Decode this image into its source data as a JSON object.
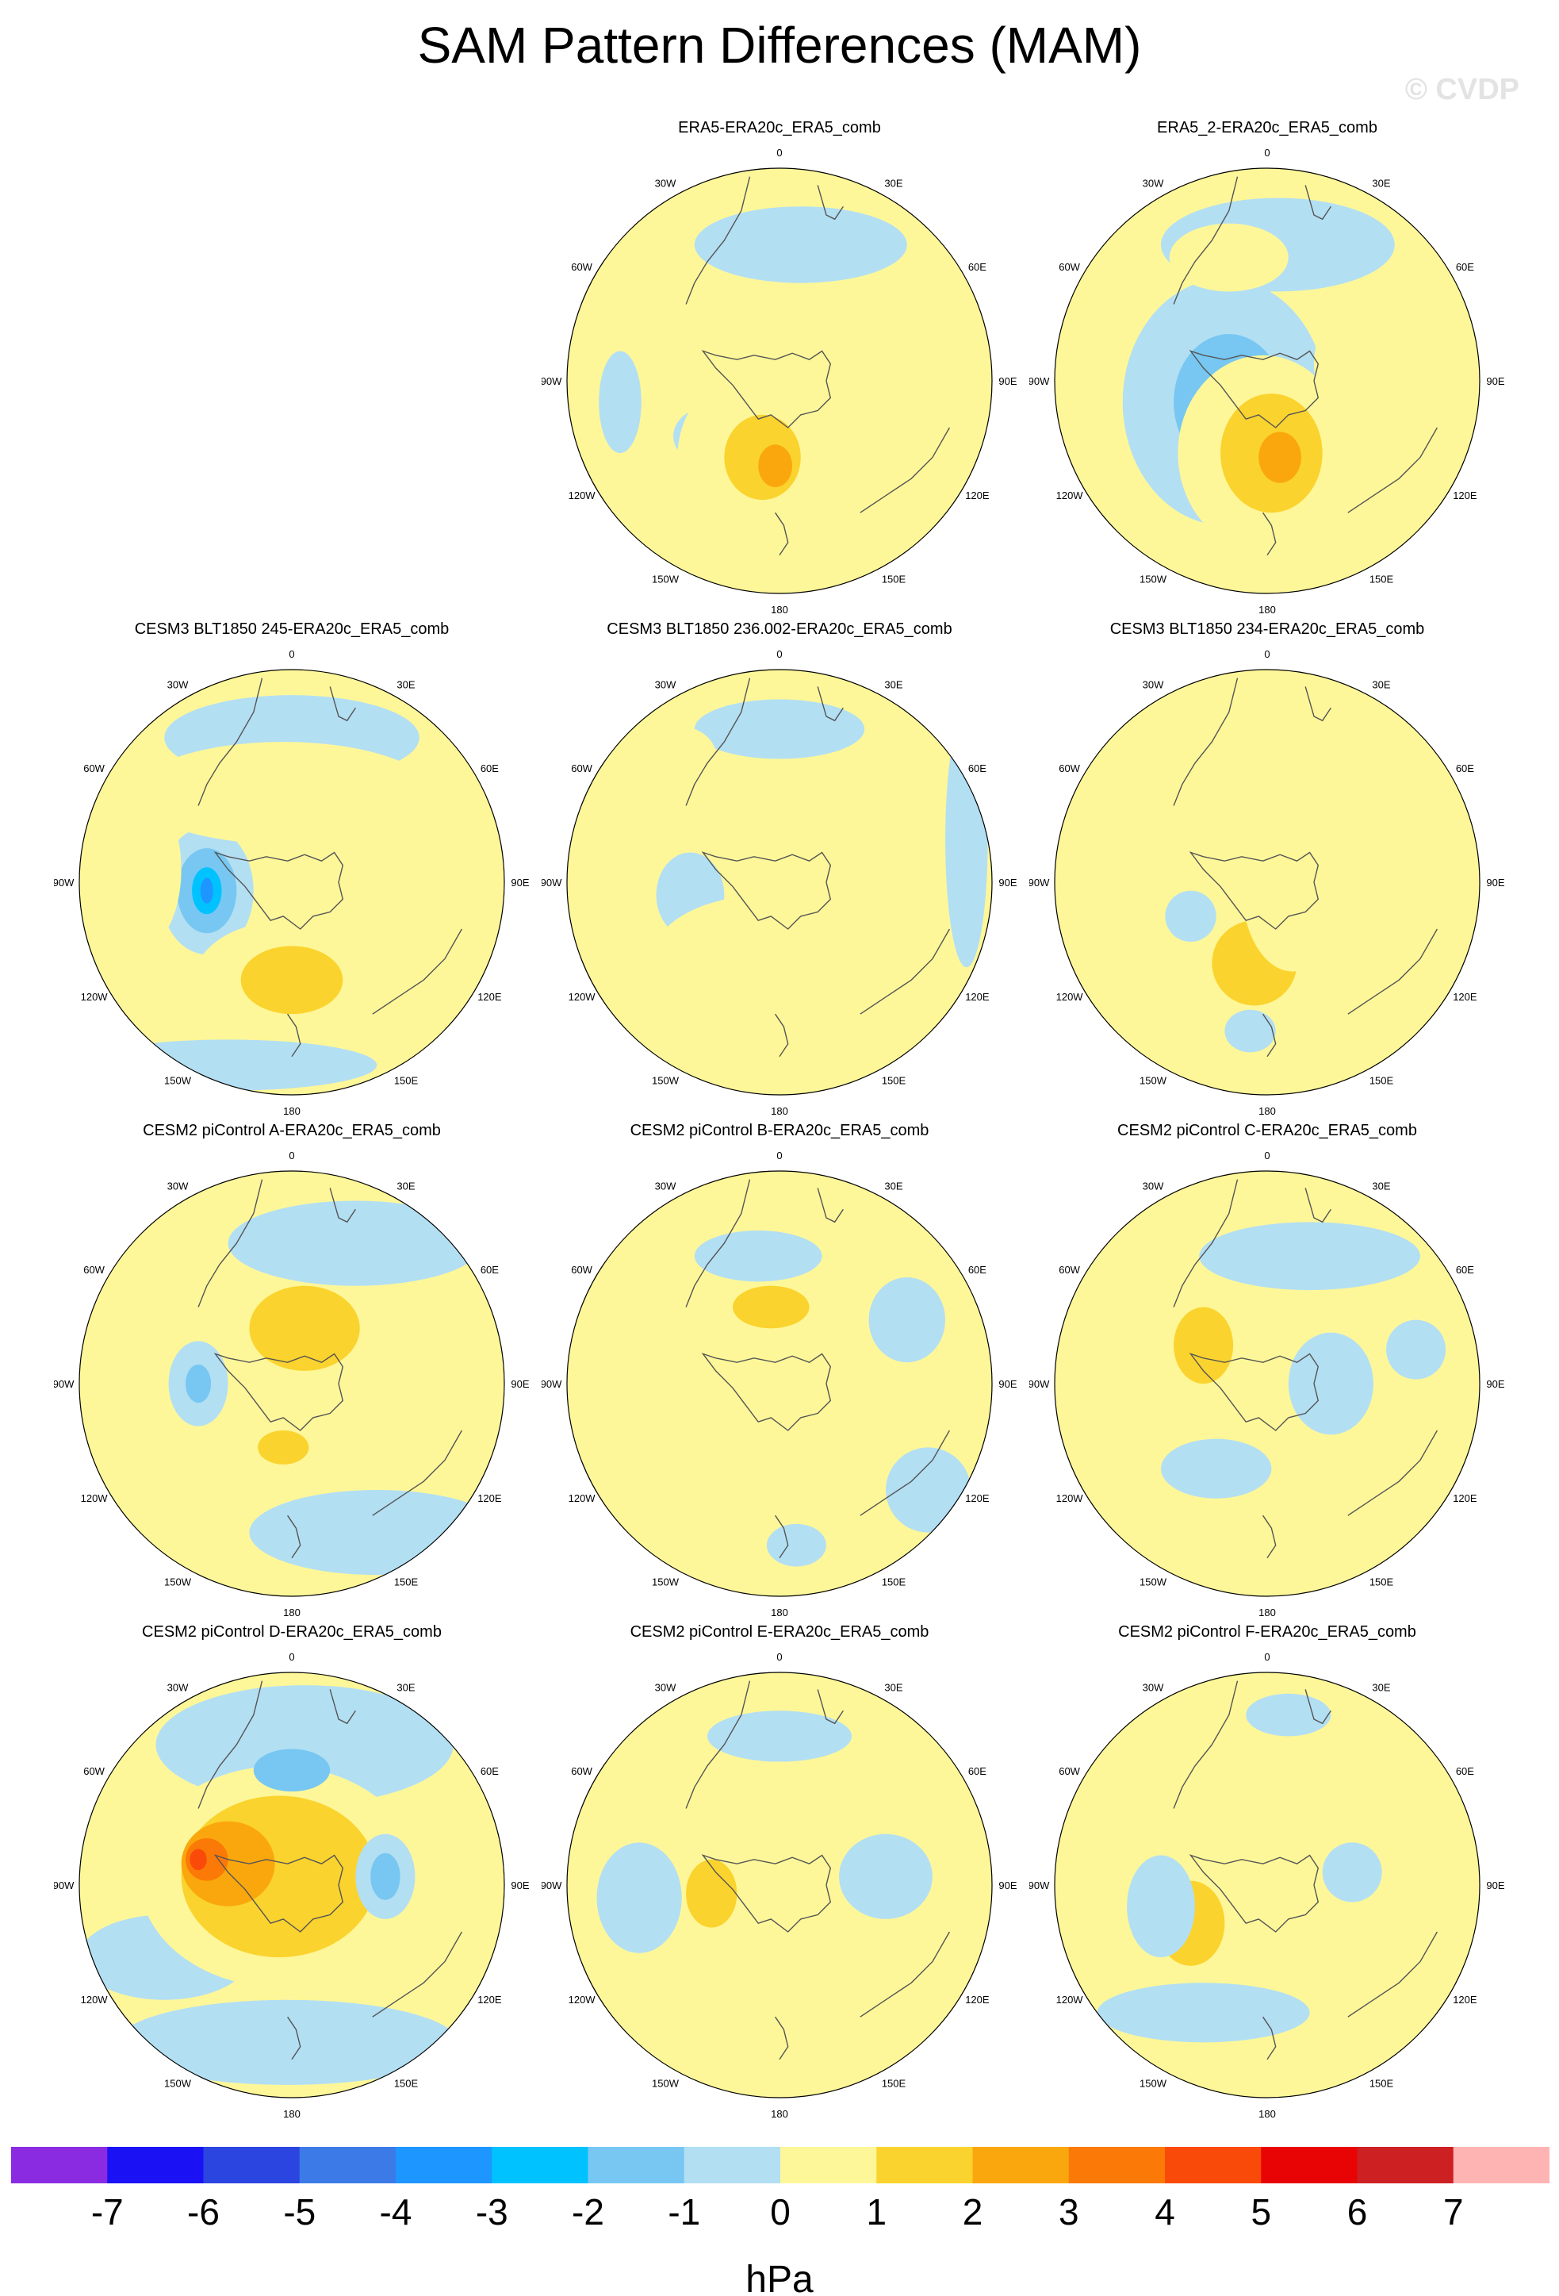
{
  "figure": {
    "title": "SAM Pattern Differences (MAM)",
    "watermark": "© CVDP",
    "units": "hPa"
  },
  "lon_labels": [
    "0",
    "30E",
    "60E",
    "90E",
    "120E",
    "150E",
    "180",
    "150W",
    "120W",
    "90W",
    "60W",
    "30W"
  ],
  "panels": [
    {
      "title": "ERA5-ERA20c_ERA5_comb"
    },
    {
      "title": "ERA5_2-ERA20c_ERA5_comb"
    },
    {
      "title": "CESM3 BLT1850 245-ERA20c_ERA5_comb"
    },
    {
      "title": "CESM3 BLT1850 236.002-ERA20c_ERA5_comb"
    },
    {
      "title": "CESM3 BLT1850 234-ERA20c_ERA5_comb"
    },
    {
      "title": "CESM2 piControl A-ERA20c_ERA5_comb"
    },
    {
      "title": "CESM2 piControl B-ERA20c_ERA5_comb"
    },
    {
      "title": "CESM2 piControl C-ERA20c_ERA5_comb"
    },
    {
      "title": "CESM2 piControl D-ERA20c_ERA5_comb"
    },
    {
      "title": "CESM2 piControl E-ERA20c_ERA5_comb"
    },
    {
      "title": "CESM2 piControl F-ERA20c_ERA5_comb"
    }
  ],
  "chart_data": {
    "type": "heatmap",
    "title": "SAM Pattern Differences (MAM)",
    "projection": "south polar stereographic",
    "colorbar": {
      "units": "hPa",
      "levels": [
        -7,
        -6,
        -5,
        -4,
        -3,
        -2,
        -1,
        0,
        1,
        2,
        3,
        4,
        5,
        6,
        7
      ],
      "tick_labels": [
        "-7",
        "-6",
        "-5",
        "-4",
        "-3",
        "-2",
        "-1",
        "0",
        "1",
        "2",
        "3",
        "4",
        "5",
        "6",
        "7"
      ],
      "colors": [
        "#8a2be2",
        "#1a12f5",
        "#2b45e0",
        "#3c7ae8",
        "#1e96ff",
        "#00c2ff",
        "#77c7f2",
        "#b3dff3",
        "#fef799",
        "#fbd32e",
        "#faa70d",
        "#fb7a07",
        "#fa4a0a",
        "#e80404",
        "#cd2022",
        "#ffb4b4"
      ]
    },
    "panels": [
      {
        "name": "ERA5-ERA20c_ERA5_comb",
        "blobs": [
          [
            -32,
            -26,
            18,
            14,
            -1
          ],
          [
            -32,
            -26,
            10,
            7,
            -2
          ],
          [
            -10,
            -36,
            38,
            42,
            1
          ],
          [
            -8,
            -36,
            18,
            20,
            2
          ],
          [
            -2,
            -40,
            8,
            10,
            3
          ],
          [
            34,
            -4,
            18,
            24,
            1
          ],
          [
            10,
            64,
            50,
            18,
            -1
          ],
          [
            -75,
            -10,
            10,
            24,
            -1
          ]
        ]
      },
      {
        "name": "ERA5_2-ERA20c_ERA5_comb",
        "blobs": [
          [
            -20,
            -10,
            48,
            58,
            -1
          ],
          [
            -18,
            -10,
            26,
            32,
            -2
          ],
          [
            -2,
            -34,
            40,
            46,
            1
          ],
          [
            2,
            -34,
            24,
            28,
            2
          ],
          [
            6,
            -36,
            10,
            12,
            3
          ],
          [
            36,
            8,
            14,
            22,
            1
          ],
          [
            5,
            64,
            55,
            22,
            -1
          ],
          [
            -18,
            58,
            28,
            16,
            1
          ]
        ]
      },
      {
        "name": "CESM3 BLT1850 245-ERA20c_ERA5_comb",
        "blobs": [
          [
            -40,
            -4,
            22,
            30,
            -1
          ],
          [
            -40,
            -4,
            14,
            20,
            -2
          ],
          [
            -40,
            -4,
            7,
            11,
            -3
          ],
          [
            -40,
            -4,
            3,
            6,
            -4
          ],
          [
            -2,
            -46,
            44,
            28,
            1
          ],
          [
            0,
            -46,
            24,
            16,
            2
          ],
          [
            -72,
            6,
            20,
            38,
            1
          ],
          [
            0,
            68,
            60,
            20,
            -1
          ],
          [
            -4,
            42,
            70,
            24,
            1
          ],
          [
            36,
            34,
            22,
            20,
            1
          ],
          [
            -30,
            -86,
            70,
            12,
            -1
          ]
        ]
      },
      {
        "name": "CESM3 BLT1850 236.002-ERA20c_ERA5_comb",
        "blobs": [
          [
            -42,
            -6,
            16,
            20,
            -1
          ],
          [
            -6,
            -36,
            54,
            30,
            1
          ],
          [
            -22,
            40,
            36,
            24,
            1
          ],
          [
            30,
            30,
            18,
            30,
            1
          ],
          [
            0,
            72,
            40,
            14,
            -1
          ],
          [
            88,
            20,
            10,
            60,
            -1
          ],
          [
            -50,
            60,
            20,
            14,
            1
          ]
        ]
      },
      {
        "name": "CESM3 BLT1850 234-ERA20c_ERA5_comb",
        "blobs": [
          [
            -8,
            -30,
            42,
            36,
            1
          ],
          [
            -6,
            -38,
            20,
            20,
            2
          ],
          [
            12,
            -2,
            24,
            40,
            1
          ],
          [
            -16,
            38,
            30,
            20,
            1
          ],
          [
            -36,
            -16,
            12,
            12,
            -1
          ],
          [
            -8,
            -70,
            12,
            10,
            -1
          ]
        ]
      },
      {
        "name": "CESM2 piControl A-ERA20c_ERA5_comb",
        "blobs": [
          [
            -8,
            10,
            44,
            56,
            1
          ],
          [
            6,
            26,
            26,
            20,
            2
          ],
          [
            -4,
            -30,
            12,
            8,
            2
          ],
          [
            -44,
            0,
            14,
            20,
            -1
          ],
          [
            -44,
            0,
            6,
            9,
            -2
          ],
          [
            30,
            66,
            60,
            20,
            -1
          ],
          [
            40,
            -70,
            60,
            20,
            -1
          ],
          [
            -82,
            -30,
            10,
            26,
            1
          ],
          [
            70,
            4,
            14,
            40,
            1
          ]
        ]
      },
      {
        "name": "CESM2 piControl B-ERA20c_ERA5_comb",
        "blobs": [
          [
            -10,
            -26,
            52,
            28,
            1
          ],
          [
            0,
            32,
            46,
            24,
            1
          ],
          [
            -4,
            36,
            18,
            10,
            2
          ],
          [
            -10,
            60,
            30,
            12,
            -1
          ],
          [
            60,
            30,
            18,
            20,
            -1
          ],
          [
            70,
            -50,
            20,
            20,
            -1
          ],
          [
            8,
            -76,
            14,
            10,
            -1
          ]
        ]
      },
      {
        "name": "CESM2 piControl C-ERA20c_ERA5_comb",
        "blobs": [
          [
            -32,
            16,
            26,
            30,
            1
          ],
          [
            -30,
            18,
            14,
            18,
            2
          ],
          [
            14,
            -30,
            14,
            30,
            1
          ],
          [
            -24,
            -40,
            26,
            14,
            -1
          ],
          [
            20,
            60,
            52,
            16,
            -1
          ],
          [
            30,
            0,
            20,
            24,
            -1
          ],
          [
            70,
            16,
            14,
            14,
            -1
          ]
        ]
      },
      {
        "name": "CESM2 piControl D-ERA20c_ERA5_comb",
        "blobs": [
          [
            6,
            66,
            70,
            28,
            -1
          ],
          [
            -2,
            -74,
            80,
            20,
            -1
          ],
          [
            -60,
            -34,
            40,
            20,
            -1
          ],
          [
            -6,
            4,
            66,
            52,
            1
          ],
          [
            -6,
            4,
            46,
            38,
            2
          ],
          [
            -30,
            10,
            22,
            20,
            3
          ],
          [
            -40,
            12,
            10,
            10,
            4
          ],
          [
            -44,
            12,
            4,
            5,
            5
          ],
          [
            44,
            4,
            14,
            20,
            -1
          ],
          [
            44,
            4,
            7,
            11,
            -2
          ],
          [
            0,
            54,
            18,
            10,
            -2
          ]
        ]
      },
      {
        "name": "CESM2 piControl E-ERA20c_ERA5_comb",
        "blobs": [
          [
            -32,
            -4,
            24,
            30,
            1
          ],
          [
            -32,
            -4,
            12,
            16,
            2
          ],
          [
            50,
            4,
            22,
            20,
            -1
          ],
          [
            -66,
            -6,
            20,
            26,
            -1
          ],
          [
            20,
            -40,
            16,
            14,
            1
          ],
          [
            0,
            70,
            34,
            12,
            -1
          ]
        ]
      },
      {
        "name": "CESM2 piControl F-ERA20c_ERA5_comb",
        "blobs": [
          [
            -16,
            6,
            40,
            42,
            1
          ],
          [
            -36,
            -18,
            16,
            20,
            2
          ],
          [
            30,
            -18,
            20,
            18,
            1
          ],
          [
            -50,
            -10,
            16,
            24,
            -1
          ],
          [
            -30,
            -60,
            50,
            14,
            -1
          ],
          [
            40,
            6,
            14,
            14,
            -1
          ],
          [
            10,
            80,
            20,
            10,
            -1
          ]
        ]
      }
    ]
  }
}
